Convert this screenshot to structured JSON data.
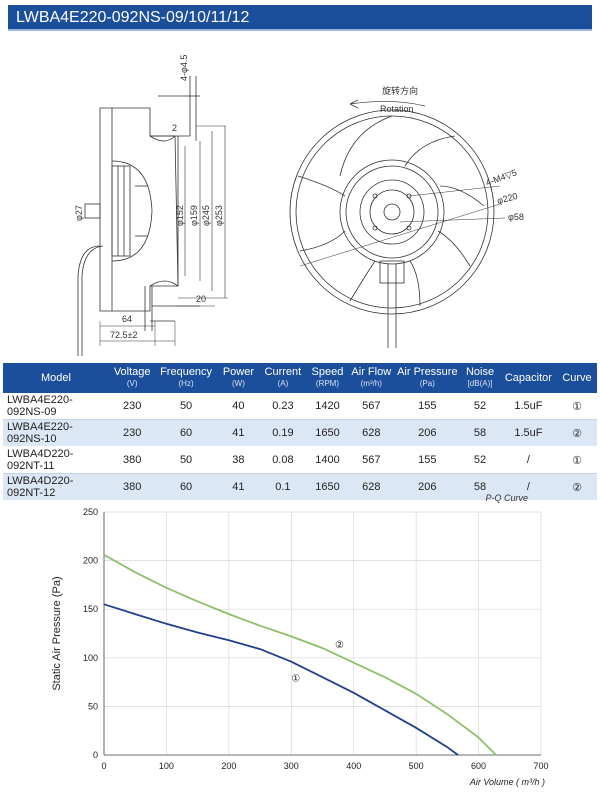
{
  "header": {
    "title": "LWBA4E220-092NS-09/10/11/12"
  },
  "drawing": {
    "side_labels": {
      "holes": "4-φ4.5",
      "dim_2": "2",
      "dia_27": "φ27",
      "dia_152": "φ152",
      "dia_159": "φ159",
      "dia_245": "φ245",
      "dia_253": "φ253",
      "dim_20": "20",
      "dim_64": "64",
      "dim_72": "72.5±2"
    },
    "front_labels": {
      "rotation_cn": "旋转方向",
      "rotation_en": "Rotation",
      "m4": "4-M4▽5",
      "dia_220": "φ220",
      "dia_58": "φ58"
    }
  },
  "table": {
    "headers": [
      {
        "label": "Model",
        "unit": ""
      },
      {
        "label": "Voltage",
        "unit": "(V)"
      },
      {
        "label": "Frequency",
        "unit": "(Hz)"
      },
      {
        "label": "Power",
        "unit": "(W)"
      },
      {
        "label": "Current",
        "unit": "(A)"
      },
      {
        "label": "Speed",
        "unit": "(RPM)"
      },
      {
        "label": "Air Flow",
        "unit": "(m³/h)"
      },
      {
        "label": "Air Pressure",
        "unit": "(Pa)"
      },
      {
        "label": "Noise",
        "unit": "[dB(A)]"
      },
      {
        "label": "Capacitor",
        "unit": ""
      },
      {
        "label": "Curve",
        "unit": ""
      }
    ],
    "rows": [
      [
        "LWBA4E220-092NS-09",
        "230",
        "50",
        "40",
        "0.23",
        "1420",
        "567",
        "155",
        "52",
        "1.5uF",
        "①"
      ],
      [
        "LWBA4E220-092NS-10",
        "230",
        "60",
        "41",
        "0.19",
        "1650",
        "628",
        "206",
        "58",
        "1.5uF",
        "②"
      ],
      [
        "LWBA4D220-092NT-11",
        "380",
        "50",
        "38",
        "0.08",
        "1400",
        "567",
        "155",
        "52",
        "/",
        "①"
      ],
      [
        "LWBA4D220-092NT-12",
        "380",
        "60",
        "41",
        "0.1",
        "1650",
        "628",
        "206",
        "58",
        "/",
        "②"
      ]
    ]
  },
  "chart_data": {
    "type": "line",
    "title": "P-Q Curve",
    "xlabel": "Air Volume ( m³/h )",
    "ylabel": "Static Air Pressure  (Pa)",
    "xlim": [
      0,
      700
    ],
    "ylim": [
      0,
      250
    ],
    "xticks": [
      0,
      100,
      200,
      300,
      400,
      500,
      600,
      700
    ],
    "yticks": [
      0,
      50,
      100,
      150,
      200,
      250
    ],
    "grid": true,
    "series": [
      {
        "name": "①",
        "color": "#1f3f8f",
        "x": [
          0,
          50,
          100,
          150,
          200,
          250,
          300,
          350,
          400,
          450,
          500,
          550,
          567
        ],
        "y": [
          155,
          145,
          135,
          126,
          118,
          109,
          96,
          80,
          64,
          46,
          28,
          8,
          0
        ]
      },
      {
        "name": "②",
        "color": "#8cc06a",
        "x": [
          0,
          50,
          100,
          150,
          200,
          250,
          300,
          350,
          400,
          450,
          500,
          550,
          600,
          628
        ],
        "y": [
          206,
          188,
          172,
          158,
          145,
          133,
          122,
          110,
          95,
          80,
          63,
          42,
          18,
          0
        ]
      }
    ]
  }
}
